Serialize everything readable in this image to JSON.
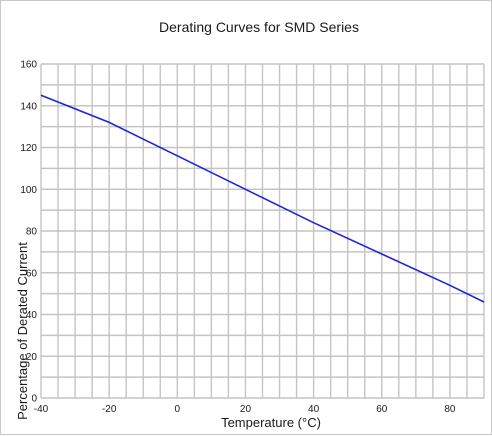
{
  "chart_data": {
    "type": "line",
    "title": "Derating Curves for SMD Series",
    "xlabel": "Temperature (°C)",
    "ylabel": "Percentage of Derated Current",
    "xlim": [
      -40,
      90
    ],
    "ylim": [
      0,
      160
    ],
    "xticks": [
      -40,
      -20,
      0,
      20,
      40,
      60,
      80
    ],
    "yticks": [
      0,
      20,
      40,
      60,
      80,
      100,
      120,
      140,
      160
    ],
    "x_minor_step": 5,
    "y_minor_step": 10,
    "grid": true,
    "series": [
      {
        "color": "#2323d6",
        "x": [
          -40,
          -20,
          0,
          20,
          40,
          60,
          80,
          90
        ],
        "y": [
          145,
          132,
          116,
          100,
          84,
          69,
          54,
          46
        ]
      }
    ]
  }
}
